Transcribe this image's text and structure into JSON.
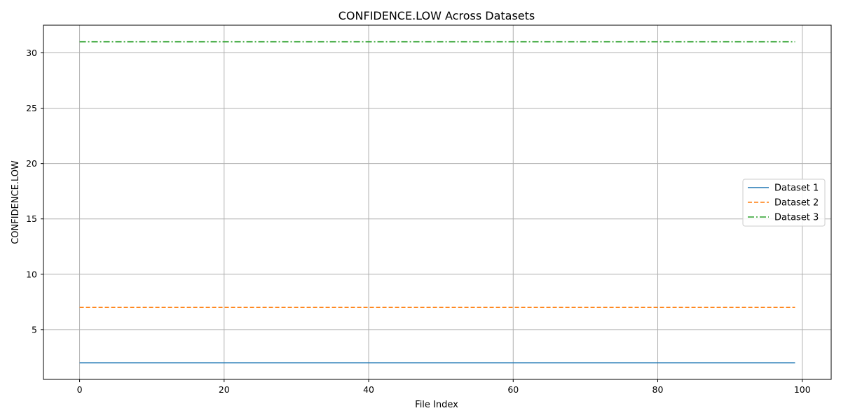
{
  "chart_data": {
    "type": "line",
    "title": "CONFIDENCE.LOW Across Datasets",
    "xlabel": "File Index",
    "ylabel": "CONFIDENCE.LOW",
    "xlim": [
      -5,
      104
    ],
    "ylim": [
      0.5,
      32.5
    ],
    "x_ticks": [
      0,
      20,
      40,
      60,
      80,
      100
    ],
    "y_ticks": [
      5,
      10,
      15,
      20,
      25,
      30
    ],
    "grid": true,
    "legend_position": "center-right",
    "x_range": [
      0,
      99
    ],
    "series": [
      {
        "name": "Dataset 1",
        "constant_value": 2,
        "color": "#1f77b4",
        "style": "solid"
      },
      {
        "name": "Dataset 2",
        "constant_value": 7,
        "color": "#ff7f0e",
        "style": "dashed"
      },
      {
        "name": "Dataset 3",
        "constant_value": 31,
        "color": "#2ca02c",
        "style": "dashdot"
      }
    ]
  }
}
